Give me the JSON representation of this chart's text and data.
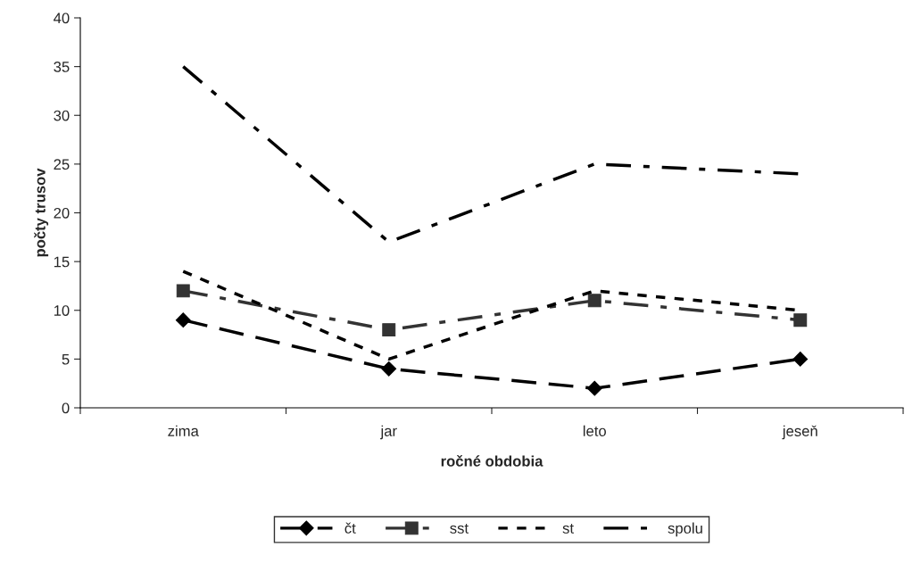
{
  "chart_data": {
    "type": "line",
    "xlabel": "ročné obdobia",
    "ylabel": "počty trusov",
    "categories": [
      "zima",
      "jar",
      "leto",
      "jeseň"
    ],
    "series": [
      {
        "name": "čt",
        "color": "#000000",
        "values": [
          9,
          4,
          2,
          5
        ],
        "marker": "diamond",
        "line_style": "dashed"
      },
      {
        "name": "sst",
        "color": "#333333",
        "values": [
          12,
          8,
          11,
          9
        ],
        "marker": "square",
        "line_style": "dashdot"
      },
      {
        "name": "st",
        "color": "#000000",
        "values": [
          14,
          5,
          12,
          10
        ],
        "marker": "none",
        "line_style": "dotted"
      },
      {
        "name": "spolu",
        "color": "#000000",
        "values": [
          35,
          17,
          25,
          24
        ],
        "marker": "none",
        "line_style": "dashdot"
      }
    ],
    "ylim": [
      0,
      40
    ],
    "yticks": [
      0,
      5,
      10,
      15,
      20,
      25,
      30,
      35,
      40
    ],
    "grid": false,
    "legend": "bottom"
  }
}
